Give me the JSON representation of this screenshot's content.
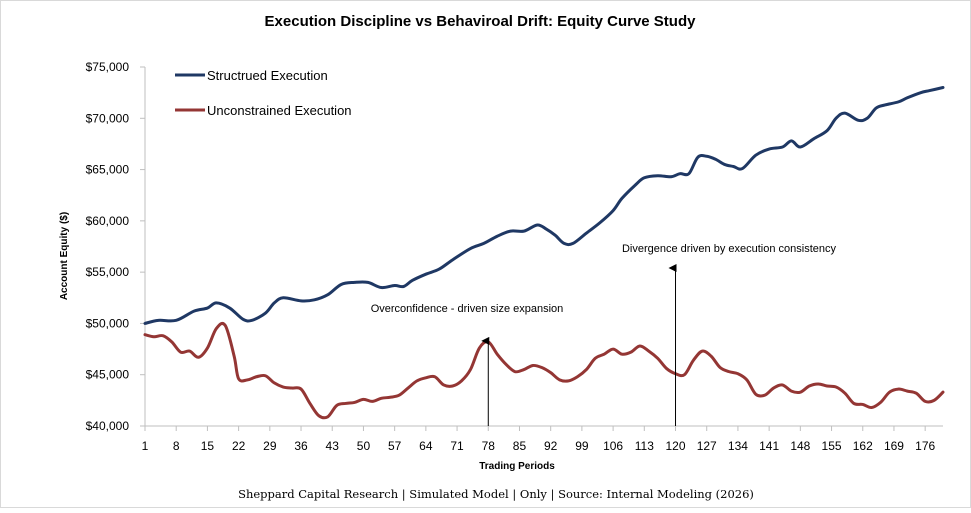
{
  "chart_data": {
    "type": "line",
    "title": "Execution Discipline vs Behaviroal Drift: Equity Curve Study",
    "xlabel": "Trading Periods",
    "ylabel": "Account Equity ($)",
    "ylim": [
      40000,
      75000
    ],
    "xlim": [
      1,
      180
    ],
    "y_ticks": [
      40000,
      45000,
      50000,
      55000,
      60000,
      65000,
      70000,
      75000
    ],
    "y_tick_labels": [
      "$40,000",
      "$45,000",
      "$50,000",
      "$55,000",
      "$60,000",
      "$65,000",
      "$70,000",
      "$75,000"
    ],
    "x_ticks": [
      1,
      8,
      15,
      22,
      29,
      36,
      43,
      50,
      57,
      64,
      71,
      78,
      85,
      92,
      99,
      106,
      113,
      120,
      127,
      134,
      141,
      148,
      155,
      162,
      169,
      176
    ],
    "x_tick_labels": [
      "1",
      "8",
      "15",
      "22",
      "29",
      "36",
      "43",
      "50",
      "57",
      "64",
      "71",
      "78",
      "85",
      "92",
      "99",
      "106",
      "113",
      "120",
      "127",
      "134",
      "141",
      "148",
      "155",
      "162",
      "169",
      "176"
    ],
    "grid": false,
    "legend_position": "top-left",
    "series": [
      {
        "name": "Structrued Execution",
        "color": "#1f3864",
        "points": [
          [
            1,
            50000
          ],
          [
            4,
            50300
          ],
          [
            8,
            50300
          ],
          [
            12,
            51200
          ],
          [
            15,
            51500
          ],
          [
            17,
            52000
          ],
          [
            20,
            51500
          ],
          [
            23,
            50400
          ],
          [
            25,
            50300
          ],
          [
            28,
            51000
          ],
          [
            30,
            52000
          ],
          [
            32,
            52500
          ],
          [
            36,
            52200
          ],
          [
            39,
            52300
          ],
          [
            42,
            52800
          ],
          [
            45,
            53800
          ],
          [
            48,
            54000
          ],
          [
            51,
            54000
          ],
          [
            54,
            53500
          ],
          [
            57,
            53700
          ],
          [
            59,
            53600
          ],
          [
            61,
            54200
          ],
          [
            64,
            54800
          ],
          [
            67,
            55300
          ],
          [
            70,
            56200
          ],
          [
            74,
            57300
          ],
          [
            77,
            57800
          ],
          [
            80,
            58500
          ],
          [
            83,
            59000
          ],
          [
            86,
            59000
          ],
          [
            89,
            59600
          ],
          [
            91,
            59200
          ],
          [
            93,
            58600
          ],
          [
            95,
            57800
          ],
          [
            97,
            57800
          ],
          [
            100,
            58800
          ],
          [
            103,
            59800
          ],
          [
            106,
            61000
          ],
          [
            108,
            62200
          ],
          [
            111,
            63500
          ],
          [
            113,
            64200
          ],
          [
            116,
            64400
          ],
          [
            119,
            64300
          ],
          [
            121,
            64600
          ],
          [
            123,
            64600
          ],
          [
            125,
            66200
          ],
          [
            127,
            66300
          ],
          [
            129,
            66000
          ],
          [
            131,
            65500
          ],
          [
            133,
            65300
          ],
          [
            135,
            65100
          ],
          [
            138,
            66400
          ],
          [
            141,
            67000
          ],
          [
            144,
            67200
          ],
          [
            146,
            67800
          ],
          [
            148,
            67200
          ],
          [
            151,
            68000
          ],
          [
            154,
            68800
          ],
          [
            156,
            70000
          ],
          [
            158,
            70500
          ],
          [
            161,
            69800
          ],
          [
            163,
            70000
          ],
          [
            165,
            71000
          ],
          [
            167,
            71300
          ],
          [
            170,
            71600
          ],
          [
            172,
            72000
          ],
          [
            175,
            72500
          ],
          [
            177,
            72700
          ],
          [
            180,
            73000
          ]
        ]
      },
      {
        "name": "Unconstrained Execution",
        "color": "#943634",
        "points": [
          [
            1,
            48900
          ],
          [
            3,
            48700
          ],
          [
            5,
            48800
          ],
          [
            7,
            48200
          ],
          [
            9,
            47200
          ],
          [
            11,
            47300
          ],
          [
            13,
            46700
          ],
          [
            15,
            47600
          ],
          [
            17,
            49500
          ],
          [
            19,
            49800
          ],
          [
            21,
            46800
          ],
          [
            22,
            44600
          ],
          [
            24,
            44500
          ],
          [
            26,
            44800
          ],
          [
            28,
            44900
          ],
          [
            30,
            44200
          ],
          [
            32,
            43800
          ],
          [
            34,
            43700
          ],
          [
            36,
            43600
          ],
          [
            38,
            42200
          ],
          [
            40,
            41000
          ],
          [
            42,
            40900
          ],
          [
            44,
            42000
          ],
          [
            46,
            42200
          ],
          [
            48,
            42300
          ],
          [
            50,
            42600
          ],
          [
            52,
            42400
          ],
          [
            54,
            42700
          ],
          [
            56,
            42800
          ],
          [
            58,
            43000
          ],
          [
            60,
            43700
          ],
          [
            62,
            44400
          ],
          [
            64,
            44700
          ],
          [
            66,
            44800
          ],
          [
            68,
            44000
          ],
          [
            70,
            43900
          ],
          [
            72,
            44400
          ],
          [
            74,
            45500
          ],
          [
            76,
            47600
          ],
          [
            78,
            48200
          ],
          [
            80,
            47000
          ],
          [
            82,
            46000
          ],
          [
            84,
            45300
          ],
          [
            86,
            45500
          ],
          [
            88,
            45900
          ],
          [
            90,
            45700
          ],
          [
            92,
            45200
          ],
          [
            94,
            44500
          ],
          [
            96,
            44400
          ],
          [
            98,
            44800
          ],
          [
            100,
            45500
          ],
          [
            102,
            46600
          ],
          [
            104,
            47000
          ],
          [
            106,
            47500
          ],
          [
            108,
            47000
          ],
          [
            110,
            47200
          ],
          [
            112,
            47800
          ],
          [
            114,
            47300
          ],
          [
            116,
            46600
          ],
          [
            118,
            45600
          ],
          [
            120,
            45100
          ],
          [
            122,
            45000
          ],
          [
            124,
            46400
          ],
          [
            126,
            47300
          ],
          [
            128,
            46800
          ],
          [
            130,
            45700
          ],
          [
            132,
            45300
          ],
          [
            134,
            45100
          ],
          [
            136,
            44500
          ],
          [
            138,
            43100
          ],
          [
            140,
            43000
          ],
          [
            142,
            43700
          ],
          [
            144,
            44000
          ],
          [
            146,
            43400
          ],
          [
            148,
            43300
          ],
          [
            150,
            43900
          ],
          [
            152,
            44100
          ],
          [
            154,
            43900
          ],
          [
            156,
            43800
          ],
          [
            158,
            43200
          ],
          [
            160,
            42200
          ],
          [
            162,
            42100
          ],
          [
            164,
            41800
          ],
          [
            166,
            42300
          ],
          [
            168,
            43300
          ],
          [
            170,
            43600
          ],
          [
            172,
            43400
          ],
          [
            174,
            43200
          ],
          [
            176,
            42400
          ],
          [
            178,
            42500
          ],
          [
            180,
            43300
          ]
        ]
      }
    ],
    "annotations": [
      {
        "text": "Overconfidence - driven size expansion",
        "x": 78,
        "arrow_from_y": 40000,
        "arrow_to_y": 48300
      },
      {
        "text": "Divergence driven by execution consistency",
        "x": 120,
        "arrow_from_y": 40000,
        "arrow_to_y": 55400
      }
    ],
    "source_note": "Sheppard Capital Research | Simulated Model | Only | Source: Internal Modeling (2026)"
  }
}
